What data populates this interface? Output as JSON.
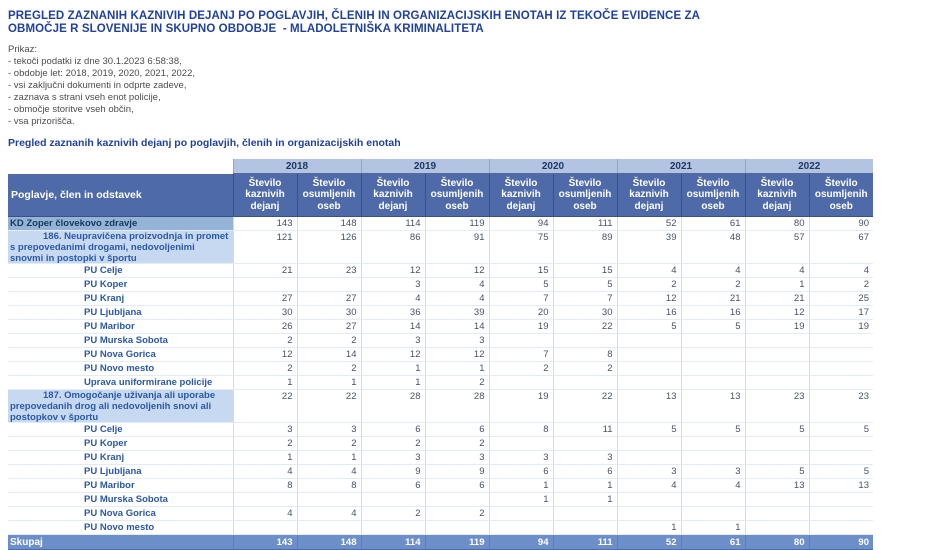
{
  "title": "PREGLED ZAZNANIH KAZNIVIH DEJANJ PO POGLAVJIH, ČLENIH IN ORGANIZACIJSKIH ENOTAH IZ TEKOČE EVIDENCE ZA OBMOČJE R SLOVENIJE IN SKUPNO OBDOBJE  - MLADOLETNIŠKA KRIMINALITETA",
  "filters": {
    "heading": "Prikaz:",
    "items": [
      "- tekoči podatki iz dne 30.1.2023 6:58:38,",
      "- obdobje let: 2018, 2019, 2020, 2021, 2022,",
      "- vsi zaključni dokumenti in odprte zadeve,",
      "- zaznava s strani vseh enot policije,",
      "- območje storitve vseh občin,",
      "- vsa prizorišča."
    ]
  },
  "subtitle": "Pregled zaznanih kaznivih dejanj po poglavjih, členih in organizacijskih enotah",
  "table": {
    "row_header": "Poglavje, člen in odstavek",
    "years": [
      "2018",
      "2019",
      "2020",
      "2021",
      "2022"
    ],
    "sub_headers": [
      "Število kaznivih dejanj",
      "Število osumljenih oseb"
    ],
    "rows": [
      {
        "type": "chapter",
        "label": "KD Zoper človekovo zdravje",
        "values": [
          "143",
          "148",
          "114",
          "119",
          "94",
          "111",
          "52",
          "61",
          "80",
          "90"
        ]
      },
      {
        "type": "article",
        "label": "186. Neupravičena proizvodnja in promet s prepovedanimi drogami, nedovoljenimi snovmi in postopki v športu",
        "values": [
          "121",
          "126",
          "86",
          "91",
          "75",
          "89",
          "39",
          "48",
          "57",
          "67"
        ]
      },
      {
        "type": "unit",
        "label": "PU Celje",
        "values": [
          "21",
          "23",
          "12",
          "12",
          "15",
          "15",
          "4",
          "4",
          "4",
          "4"
        ]
      },
      {
        "type": "unit",
        "label": "PU Koper",
        "values": [
          "",
          "",
          "3",
          "4",
          "5",
          "5",
          "2",
          "2",
          "1",
          "2"
        ]
      },
      {
        "type": "unit",
        "label": "PU Kranj",
        "values": [
          "27",
          "27",
          "4",
          "4",
          "7",
          "7",
          "12",
          "21",
          "21",
          "25"
        ]
      },
      {
        "type": "unit",
        "label": "PU Ljubljana",
        "values": [
          "30",
          "30",
          "36",
          "39",
          "20",
          "30",
          "16",
          "16",
          "12",
          "17"
        ]
      },
      {
        "type": "unit",
        "label": "PU Maribor",
        "values": [
          "26",
          "27",
          "14",
          "14",
          "19",
          "22",
          "5",
          "5",
          "19",
          "19"
        ]
      },
      {
        "type": "unit",
        "label": "PU Murska Sobota",
        "values": [
          "2",
          "2",
          "3",
          "3",
          "",
          "",
          "",
          "",
          "",
          ""
        ]
      },
      {
        "type": "unit",
        "label": "PU Nova Gorica",
        "values": [
          "12",
          "14",
          "12",
          "12",
          "7",
          "8",
          "",
          "",
          "",
          ""
        ]
      },
      {
        "type": "unit",
        "label": "PU Novo mesto",
        "values": [
          "2",
          "2",
          "1",
          "1",
          "2",
          "2",
          "",
          "",
          "",
          ""
        ]
      },
      {
        "type": "unit",
        "label": "Uprava uniformirane policije",
        "values": [
          "1",
          "1",
          "1",
          "2",
          "",
          "",
          "",
          "",
          "",
          ""
        ]
      },
      {
        "type": "article",
        "label": "187. Omogočanje uživanja ali uporabe prepovedanih drog ali nedovoljenih snovi ali postopkov v športu",
        "values": [
          "22",
          "22",
          "28",
          "28",
          "19",
          "22",
          "13",
          "13",
          "23",
          "23"
        ]
      },
      {
        "type": "unit",
        "label": "PU Celje",
        "values": [
          "3",
          "3",
          "6",
          "6",
          "8",
          "11",
          "5",
          "5",
          "5",
          "5"
        ]
      },
      {
        "type": "unit",
        "label": "PU Koper",
        "values": [
          "2",
          "2",
          "2",
          "2",
          "",
          "",
          "",
          "",
          "",
          ""
        ]
      },
      {
        "type": "unit",
        "label": "PU Kranj",
        "values": [
          "1",
          "1",
          "3",
          "3",
          "3",
          "3",
          "",
          "",
          "",
          ""
        ]
      },
      {
        "type": "unit",
        "label": "PU Ljubljana",
        "values": [
          "4",
          "4",
          "9",
          "9",
          "6",
          "6",
          "3",
          "3",
          "5",
          "5"
        ]
      },
      {
        "type": "unit",
        "label": "PU Maribor",
        "values": [
          "8",
          "8",
          "6",
          "6",
          "1",
          "1",
          "4",
          "4",
          "13",
          "13"
        ]
      },
      {
        "type": "unit",
        "label": "PU Murska Sobota",
        "values": [
          "",
          "",
          "",
          "",
          "1",
          "1",
          "",
          "",
          "",
          ""
        ]
      },
      {
        "type": "unit",
        "label": "PU Nova Gorica",
        "values": [
          "4",
          "4",
          "2",
          "2",
          "",
          "",
          "",
          "",
          "",
          ""
        ]
      },
      {
        "type": "unit",
        "label": "PU Novo mesto",
        "values": [
          "",
          "",
          "",
          "",
          "",
          "",
          "1",
          "1",
          "",
          ""
        ]
      }
    ],
    "total_row": {
      "label": "Skupaj",
      "values": [
        "143",
        "148",
        "114",
        "119",
        "94",
        "111",
        "52",
        "61",
        "80",
        "90"
      ]
    }
  },
  "colors": {
    "title_blue": "#1F41A0",
    "header_bg": "#4F6AA8",
    "year_band_bg": "#B2C4E2",
    "chapter_bg": "#95B3D7",
    "article_bg": "#C7D9F1",
    "total_bg": "#6D8FC9",
    "link_blue": "#2A58A8",
    "value_text": "#44546A"
  }
}
